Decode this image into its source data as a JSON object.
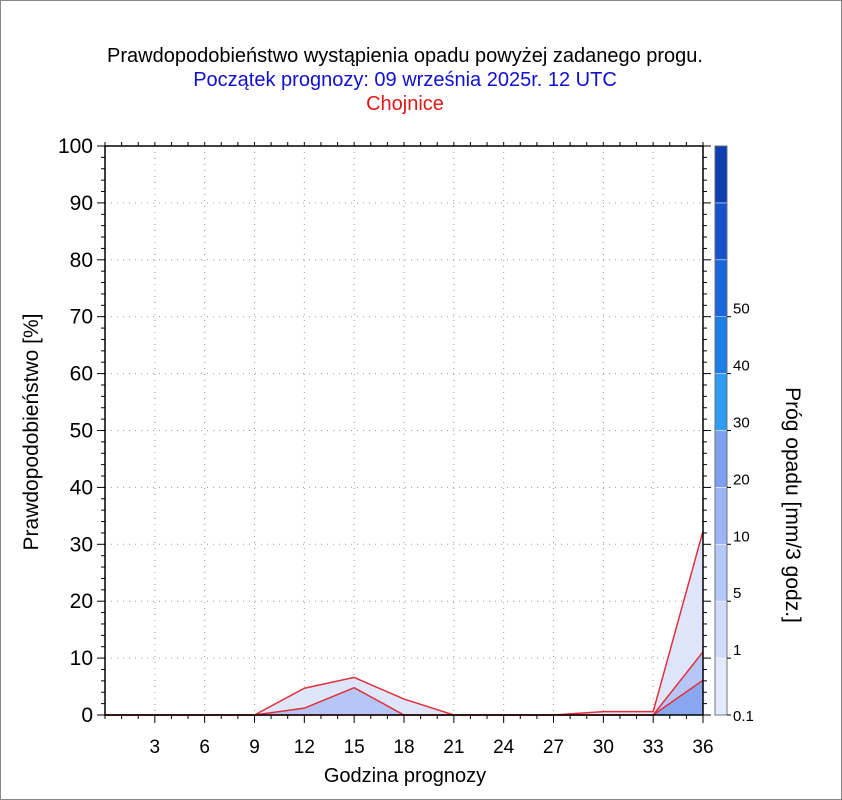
{
  "chart_data": {
    "type": "area",
    "title": "Prawdopodobieństwo wystąpienia opadu powyżej zadanego progu.",
    "subtitle": "Początek prognozy: 09 września 2025r. 12 UTC",
    "location": "Chojnice",
    "xlabel": "Godzina prognozy",
    "ylabel": "Prawdopodobieństwo [%]",
    "colorbar_label": "Próg opadu [mm/3 godz.]",
    "xlim": [
      0,
      36
    ],
    "ylim": [
      0,
      100
    ],
    "x_ticks": [
      3,
      6,
      9,
      12,
      15,
      18,
      21,
      24,
      27,
      30,
      33,
      36
    ],
    "y_ticks": [
      0,
      10,
      20,
      30,
      40,
      50,
      60,
      70,
      80,
      90,
      100
    ],
    "grid": true,
    "x": [
      0,
      3,
      6,
      9,
      12,
      15,
      18,
      21,
      24,
      27,
      30,
      33,
      36
    ],
    "series": [
      {
        "threshold": "0.1",
        "color": "#dfe6fb",
        "values": [
          0,
          0,
          0,
          0,
          4.7,
          6.6,
          2.8,
          0,
          0,
          0,
          0.6,
          0.6,
          32.3
        ]
      },
      {
        "threshold": "1",
        "color": "#b6c6f6",
        "values": [
          0,
          0,
          0,
          0,
          1.2,
          4.8,
          0,
          0,
          0,
          0,
          0,
          0,
          11.1
        ]
      },
      {
        "threshold": "5",
        "color": "#8aa8f2",
        "values": [
          0,
          0,
          0,
          0,
          0,
          0,
          0,
          0,
          0,
          0,
          0,
          0,
          6.1
        ]
      }
    ],
    "colorbar": {
      "levels": [
        "0.1",
        "1",
        "5",
        "10",
        "20",
        "30",
        "40",
        "50"
      ],
      "colors": [
        "#e4eafd",
        "#d0dcfb",
        "#b6c8f7",
        "#9cb4f4",
        "#7ea0f1",
        "#2f9bf3",
        "#1e7ee8",
        "#1a66dc",
        "#1652cc",
        "#0f3fb2"
      ]
    },
    "line_color": "#e0303a"
  }
}
